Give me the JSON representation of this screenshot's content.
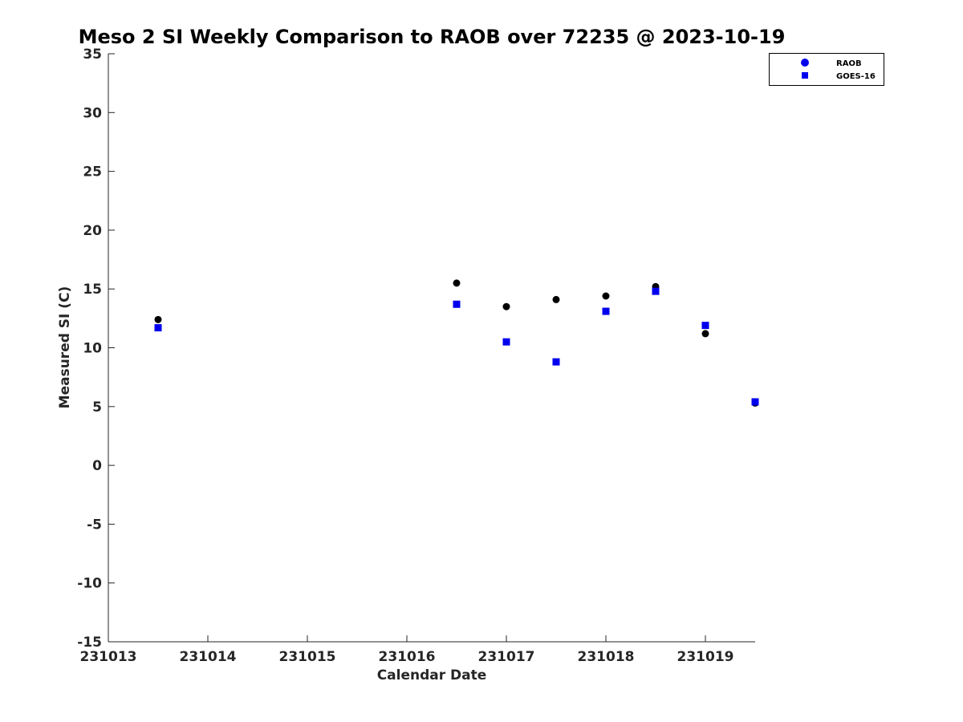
{
  "chart_data": {
    "type": "scatter",
    "title": "Meso 2 SI Weekly Comparison to RAOB over 72235 @ 2023-10-19",
    "xlabel": "Calendar Date",
    "ylabel": "Measured SI (C)",
    "xlim": [
      231013,
      231019.5
    ],
    "ylim": [
      -15,
      35
    ],
    "x_ticks": [
      231013,
      231014,
      231015,
      231016,
      231017,
      231018,
      231019
    ],
    "x_tick_labels": [
      "231013",
      "231014",
      "231015",
      "231016",
      "231017",
      "231018",
      "231019"
    ],
    "y_ticks": [
      -15,
      -10,
      -5,
      0,
      5,
      10,
      15,
      20,
      25,
      30,
      35
    ],
    "y_tick_labels": [
      "-15",
      "-10",
      "-5",
      "0",
      "5",
      "10",
      "15",
      "20",
      "25",
      "30",
      "35"
    ],
    "grid": false,
    "legend_position": "top-right",
    "series": [
      {
        "name": "RAOB",
        "marker": "circle",
        "legend_color": "#0000ee",
        "plot_color": "#000000",
        "points": [
          {
            "x": 231013.5,
            "y": 12.4
          },
          {
            "x": 231016.5,
            "y": 15.5
          },
          {
            "x": 231017.0,
            "y": 13.5
          },
          {
            "x": 231017.5,
            "y": 14.1
          },
          {
            "x": 231018.0,
            "y": 14.4
          },
          {
            "x": 231018.5,
            "y": 15.2
          },
          {
            "x": 231019.0,
            "y": 11.2
          },
          {
            "x": 231019.5,
            "y": 5.3
          }
        ]
      },
      {
        "name": "GOES-16",
        "marker": "square",
        "legend_color": "#0000ee",
        "plot_color": "#0000ee",
        "points": [
          {
            "x": 231013.5,
            "y": 11.7
          },
          {
            "x": 231016.5,
            "y": 13.7
          },
          {
            "x": 231017.0,
            "y": 10.5
          },
          {
            "x": 231017.5,
            "y": 8.8
          },
          {
            "x": 231018.0,
            "y": 13.1
          },
          {
            "x": 231018.5,
            "y": 14.8
          },
          {
            "x": 231019.0,
            "y": 11.9
          },
          {
            "x": 231019.5,
            "y": 5.4
          }
        ]
      }
    ]
  }
}
